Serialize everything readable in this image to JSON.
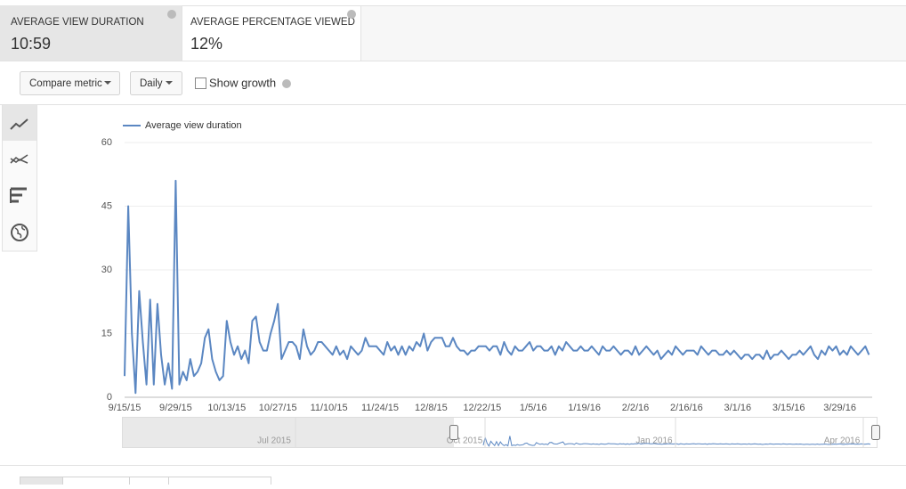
{
  "metrics": [
    {
      "label": "AVERAGE VIEW DURATION",
      "value": "10:59"
    },
    {
      "label": "AVERAGE PERCENTAGE VIEWED",
      "value": "12%"
    }
  ],
  "controls": {
    "compare_metric": "Compare metric",
    "interval": "Daily",
    "show_growth": "Show growth"
  },
  "navigator": {
    "labels": [
      "Jul 2015",
      "Oct 2015",
      "Jan 2016",
      "Apr 2016"
    ]
  },
  "chart_data": {
    "type": "line",
    "categories": [
      "9/15/15",
      null,
      null,
      null,
      null,
      null,
      null,
      null,
      null,
      null,
      null,
      null,
      null,
      null,
      "9/29/15",
      null,
      null,
      null,
      null,
      null,
      null,
      null,
      null,
      null,
      null,
      null,
      null,
      null,
      "10/13/15",
      null,
      null,
      null,
      null,
      null,
      null,
      null,
      null,
      null,
      null,
      null,
      null,
      null,
      "10/27/15",
      null,
      null,
      null,
      null,
      null,
      null,
      null,
      null,
      null,
      null,
      null,
      null,
      null,
      "11/10/15",
      null,
      null,
      null,
      null,
      null,
      null,
      null,
      null,
      null,
      null,
      null,
      null,
      null,
      "11/24/15",
      null,
      null,
      null,
      null,
      null,
      null,
      null,
      null,
      null,
      null,
      null,
      null,
      null,
      "12/8/15",
      null,
      null,
      null,
      null,
      null,
      null,
      null,
      null,
      null,
      null,
      null,
      null,
      null,
      "12/22/15",
      null,
      null,
      null,
      null,
      null,
      null,
      null,
      null,
      null,
      null,
      null,
      null,
      null,
      "1/5/16",
      null,
      null,
      null,
      null,
      null,
      null,
      null,
      null,
      null,
      null,
      null,
      null,
      null,
      "1/19/16",
      null,
      null,
      null,
      null,
      null,
      null,
      null,
      null,
      null,
      null,
      null,
      null,
      null,
      "2/2/16",
      null,
      null,
      null,
      null,
      null,
      null,
      null,
      null,
      null,
      null,
      null,
      null,
      null,
      "2/16/16",
      null,
      null,
      null,
      null,
      null,
      null,
      null,
      null,
      null,
      null,
      null,
      null,
      null,
      "3/1/16",
      null,
      null,
      null,
      null,
      null,
      null,
      null,
      null,
      null,
      null,
      null,
      null,
      null,
      "3/15/16",
      null,
      null,
      null,
      null,
      null,
      null,
      null,
      null,
      null,
      null,
      null,
      null,
      null,
      "3/29/16",
      null,
      null,
      null,
      null,
      null,
      null,
      null,
      null
    ],
    "series": [
      {
        "name": "Average view duration",
        "color": "#5b87c2",
        "values": [
          5,
          45,
          15,
          1,
          25,
          13,
          3,
          23,
          3,
          22,
          10,
          3,
          8,
          2,
          51,
          3,
          6,
          4,
          9,
          5,
          6,
          8,
          14,
          16,
          9,
          6,
          4,
          5,
          18,
          13,
          10,
          12,
          9,
          11,
          8,
          18,
          19,
          13,
          11,
          11,
          15,
          18,
          22,
          9,
          11,
          13,
          13,
          12,
          9,
          16,
          12,
          10,
          11,
          13,
          13,
          12,
          11,
          10,
          12,
          10,
          11,
          9,
          12,
          11,
          10,
          11,
          14,
          12,
          12,
          12,
          11,
          10,
          13,
          11,
          12,
          10,
          12,
          10,
          12,
          11,
          13,
          12,
          15,
          11,
          13,
          14,
          14,
          14,
          12,
          12,
          14,
          12,
          11,
          11,
          10,
          11,
          11,
          12,
          12,
          12,
          11,
          12,
          12,
          10,
          13,
          11,
          10,
          12,
          11,
          11,
          12,
          13,
          11,
          12,
          12,
          11,
          11,
          12,
          10,
          12,
          11,
          13,
          12,
          11,
          11,
          12,
          11,
          11,
          12,
          11,
          10,
          12,
          11,
          11,
          12,
          11,
          10,
          11,
          11,
          10,
          12,
          10,
          11,
          12,
          11,
          10,
          11,
          9,
          10,
          11,
          10,
          12,
          11,
          10,
          11,
          11,
          11,
          10,
          12,
          11,
          10,
          11,
          11,
          10,
          10,
          11,
          10,
          11,
          10,
          9,
          10,
          10,
          9,
          10,
          10,
          9,
          11,
          9,
          10,
          10,
          11,
          10,
          9,
          10,
          10,
          11,
          10,
          11,
          12,
          10,
          9,
          11,
          10,
          12,
          11,
          12,
          10,
          11,
          10,
          12,
          11,
          10,
          11,
          12,
          10
        ]
      }
    ],
    "ylim": [
      0,
      60
    ],
    "yticks": [
      0,
      15,
      30,
      45,
      60
    ],
    "grid": true
  }
}
